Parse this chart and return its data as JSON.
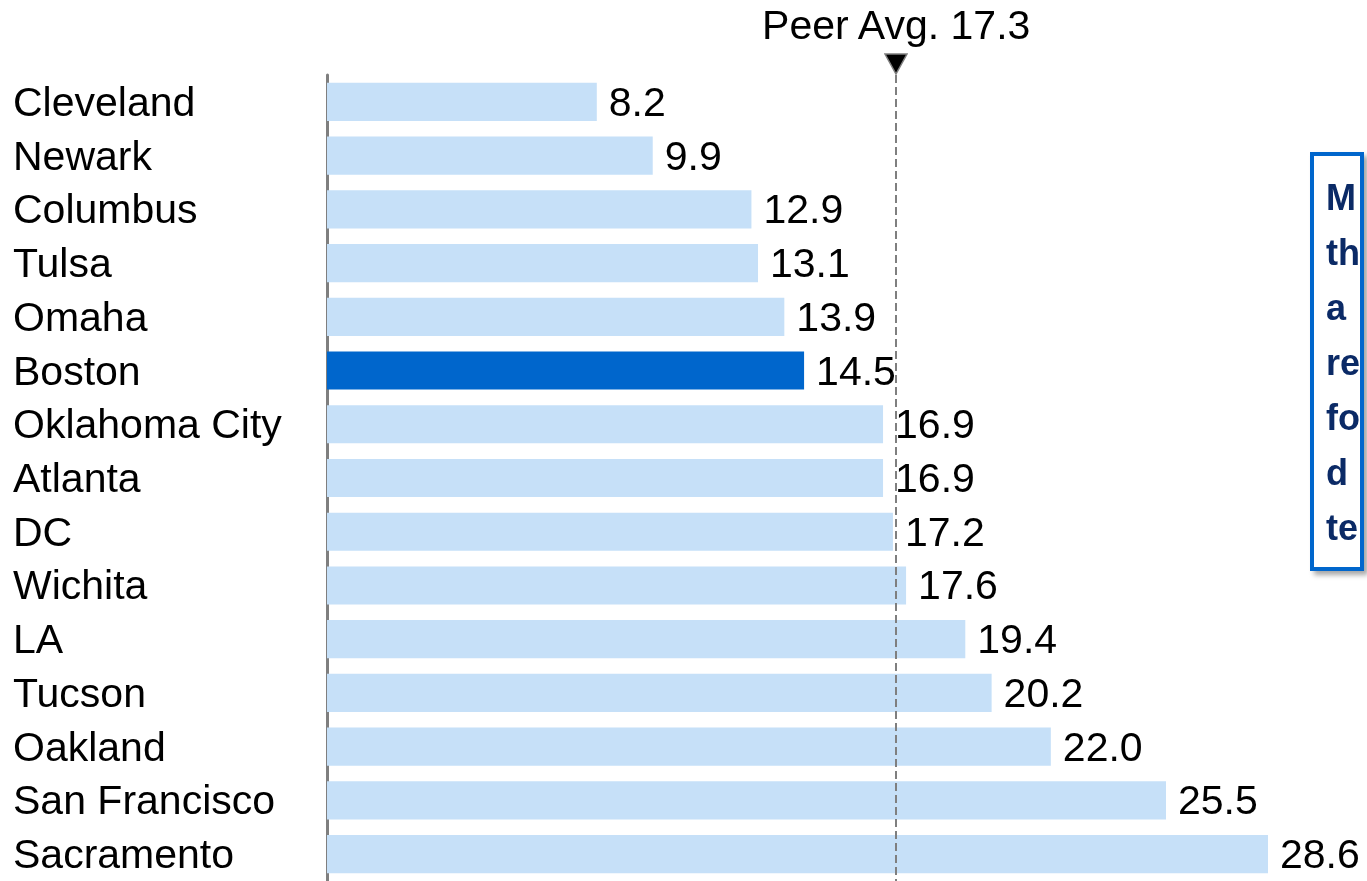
{
  "chart_data": {
    "type": "bar",
    "orientation": "horizontal",
    "categories": [
      "Cleveland",
      "Newark",
      "Columbus",
      "Tulsa",
      "Omaha",
      "Boston",
      "Oklahoma City",
      "Atlanta",
      "DC",
      "Wichita",
      "LA",
      "Tucson",
      "Oakland",
      "San Francisco",
      "Sacramento"
    ],
    "values": [
      8.2,
      9.9,
      12.9,
      13.1,
      13.9,
      14.5,
      16.9,
      16.9,
      17.2,
      17.6,
      19.4,
      20.2,
      22.0,
      25.5,
      28.6
    ],
    "colors": [
      "#c6e0f8",
      "#c6e0f8",
      "#c6e0f8",
      "#c6e0f8",
      "#c6e0f8",
      "#0066cc",
      "#c6e0f8",
      "#c6e0f8",
      "#c6e0f8",
      "#c6e0f8",
      "#c6e0f8",
      "#c6e0f8",
      "#c6e0f8",
      "#c6e0f8",
      "#c6e0f8"
    ],
    "value_labels": [
      "8.2",
      "9.9",
      "12.9",
      "13.1",
      "13.9",
      "14.5",
      "16.9",
      "16.9",
      "17.2",
      "17.6",
      "19.4",
      "20.2",
      "22.0",
      "25.5",
      "28.6"
    ],
    "ref_lines": [
      {
        "axis": "x",
        "value": 17.3,
        "label": "Peer Avg. 17.3",
        "color": "#7f7f7f",
        "line_style": "dashed"
      }
    ],
    "annotations": [
      "M\nth\na\nre\nfo\nd\nte"
    ]
  }
}
